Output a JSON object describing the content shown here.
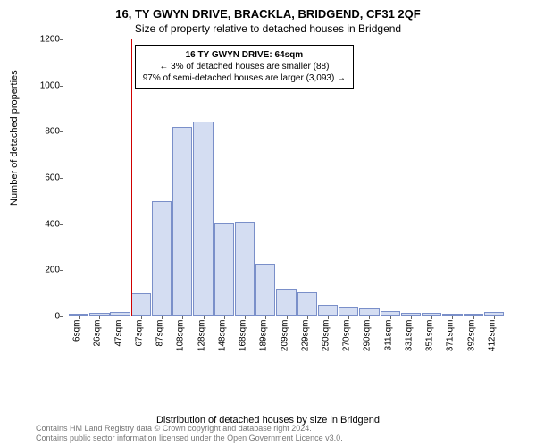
{
  "title": "16, TY GWYN DRIVE, BRACKLA, BRIDGEND, CF31 2QF",
  "subtitle": "Size of property relative to detached houses in Bridgend",
  "ylabel": "Number of detached properties",
  "xlabel": "Distribution of detached houses by size in Bridgend",
  "footer_line1": "Contains HM Land Registry data © Crown copyright and database right 2024.",
  "footer_line2": "Contains public sector information licensed under the Open Government Licence v3.0.",
  "chart": {
    "type": "histogram",
    "ylim": [
      0,
      1200
    ],
    "yticks": [
      0,
      200,
      400,
      600,
      800,
      1000,
      1200
    ],
    "bar_fill": "#d4ddf2",
    "bar_border": "#7a8fc9",
    "ref_color": "#d00000",
    "ref_value_x": 64,
    "categories": [
      "6sqm",
      "26sqm",
      "47sqm",
      "67sqm",
      "87sqm",
      "108sqm",
      "128sqm",
      "148sqm",
      "168sqm",
      "189sqm",
      "209sqm",
      "229sqm",
      "250sqm",
      "270sqm",
      "290sqm",
      "311sqm",
      "331sqm",
      "351sqm",
      "371sqm",
      "392sqm",
      "412sqm"
    ],
    "values": [
      5,
      10,
      15,
      95,
      495,
      815,
      840,
      400,
      405,
      225,
      115,
      100,
      45,
      40,
      30,
      20,
      12,
      10,
      8,
      6,
      15
    ]
  },
  "infobox": {
    "line1": "16 TY GWYN DRIVE: 64sqm",
    "line2": "← 3% of detached houses are smaller (88)",
    "line3": "97% of semi-detached houses are larger (3,093) →"
  }
}
